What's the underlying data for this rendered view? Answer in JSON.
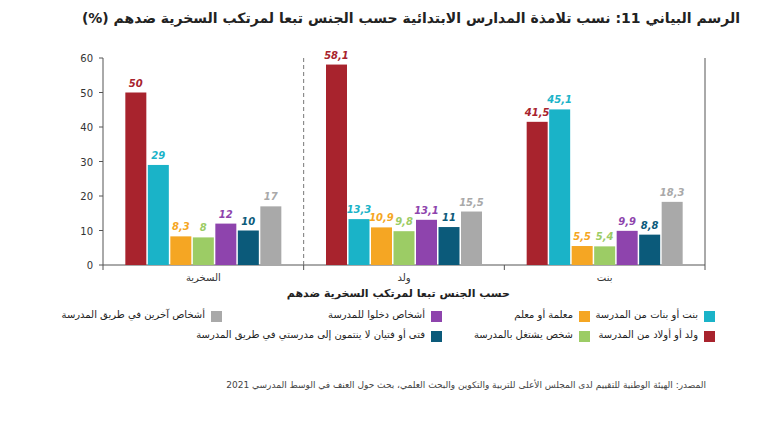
{
  "chart_data": {
    "type": "bar",
    "title": "الرسم البياني 11: نسب تلامذة المدارس الابتدائية حسب الجنس تبعا لمرتكب السخرية ضدهم (%)",
    "x_label": "حسب الجنس تبعا لمرتكب السخرية ضدهم",
    "source": "المصدر: الهيئة الوطنية للتقييم لدى المجلس الأعلى للتربية والتكوين والبحث العلمي، بحث حول العنف في الوسط المدرسي 2021",
    "categories": [
      "السخرية",
      "ولد",
      "بنت"
    ],
    "series": [
      {
        "name": "ولد أو أولاد من المدرسة",
        "color": "#a8232d",
        "values": [
          50,
          58.1,
          41.5
        ],
        "value_labels": [
          "50",
          "58,1",
          "41,5"
        ]
      },
      {
        "name": "بنت أو بنات من المدرسة",
        "color": "#1ab3c8",
        "values": [
          29,
          13.3,
          45.1
        ],
        "value_labels": [
          "29",
          "13,3",
          "45,1"
        ]
      },
      {
        "name": "معلمة أو معلم",
        "color": "#f5a623",
        "values": [
          8.3,
          10.9,
          5.5
        ],
        "value_labels": [
          "8,3",
          "10,9",
          "5,5"
        ]
      },
      {
        "name": "شخص يشتغل بالمدرسة",
        "color": "#9ccc65",
        "values": [
          8,
          9.8,
          5.4
        ],
        "value_labels": [
          "8",
          "9,8",
          "5,4"
        ]
      },
      {
        "name": "أشخاص دخلوا للمدرسة",
        "color": "#8e44ad",
        "values": [
          12,
          13.1,
          9.9
        ],
        "value_labels": [
          "12",
          "13,1",
          "9,9"
        ]
      },
      {
        "name": "فتى أو فتيان لا ينتمون إلى مدرستي في طريق المدرسة",
        "color": "#0b5a7a",
        "values": [
          10,
          11,
          8.8
        ],
        "value_labels": [
          "10",
          "11",
          "8,8"
        ]
      },
      {
        "name": "أشخاص آخرين في طريق المدرسة",
        "color": "#a9a9a9",
        "values": [
          17,
          15.5,
          18.3
        ],
        "value_labels": [
          "17",
          "15,5",
          "18,3"
        ]
      }
    ],
    "ylim": [
      0,
      60
    ],
    "yticks": [
      0,
      10,
      20,
      30,
      40,
      50,
      60
    ],
    "grid": false,
    "data_labels": true,
    "legend": "bottom"
  }
}
